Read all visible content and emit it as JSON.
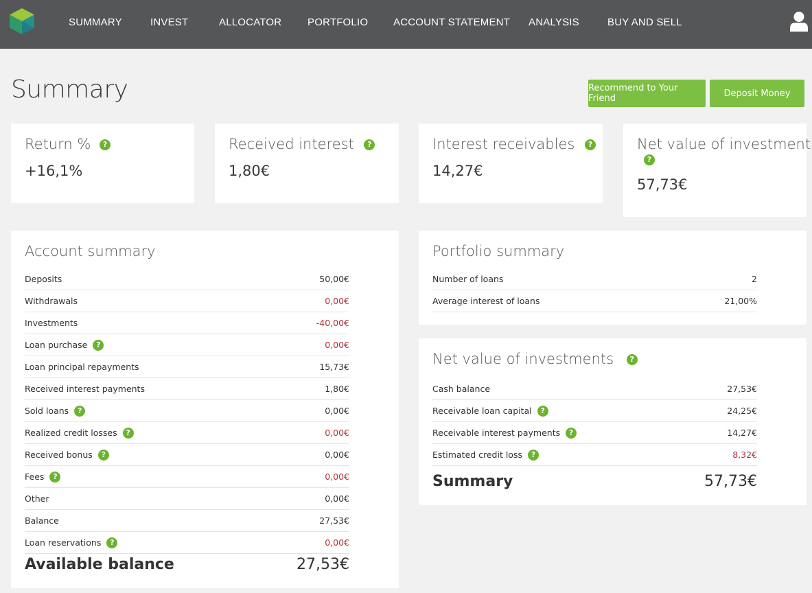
{
  "nav": {
    "items": [
      "SUMMARY",
      "INVEST",
      "ALLOCATOR",
      "PORTFOLIO",
      "ACCOUNT STATEMENT",
      "ANALYSIS",
      "BUY AND SELL"
    ]
  },
  "icons": {
    "logo": "hexagon-logo",
    "user": "user-icon",
    "help": "help-icon"
  },
  "colors": {
    "accent": "#7cbf42",
    "help": "#6ab42e",
    "negative": "#b0343a",
    "topbar": "#555657"
  },
  "page": {
    "title": "Summary"
  },
  "actions": {
    "recommend": "Recommend to Your Friend",
    "deposit": "Deposit Money"
  },
  "help_glyph": "?",
  "kpis": [
    {
      "label": "Return %",
      "value": "+16,1%"
    },
    {
      "label": "Received interest",
      "value": "1,80€"
    },
    {
      "label": "Interest receivables",
      "value": "14,27€"
    },
    {
      "label": "Net value of investments",
      "value": "57,73€"
    }
  ],
  "account_summary": {
    "title": "Account summary",
    "rows": [
      {
        "label": "Deposits",
        "value": "50,00€"
      },
      {
        "label": "Withdrawals",
        "value": "0,00€"
      },
      {
        "label": "Investments",
        "value": "-40,00€"
      },
      {
        "label": "Loan purchase",
        "value": "0,00€"
      },
      {
        "label": "Loan principal repayments",
        "value": "15,73€"
      },
      {
        "label": "Received interest payments",
        "value": "1,80€"
      },
      {
        "label": "Sold loans",
        "value": "0,00€"
      },
      {
        "label": "Realized credit losses",
        "value": "0,00€"
      },
      {
        "label": "Received bonus",
        "value": "0,00€"
      },
      {
        "label": "Fees",
        "value": "0,00€"
      },
      {
        "label": "Other",
        "value": "0,00€"
      },
      {
        "label": "Balance",
        "value": "27,53€"
      },
      {
        "label": "Loan reservations",
        "value": "0,00€"
      }
    ],
    "total_label": "Available balance",
    "total_value": "27,53€"
  },
  "portfolio_summary": {
    "title": "Portfolio summary",
    "rows": [
      {
        "label": "Number of loans",
        "value": "2"
      },
      {
        "label": "Average interest of loans",
        "value": "21,00%"
      }
    ]
  },
  "net_value": {
    "title": "Net value of investments",
    "rows": [
      {
        "label": "Cash balance",
        "value": "27,53€"
      },
      {
        "label": "Receivable loan capital",
        "value": "24,25€"
      },
      {
        "label": "Receivable interest payments",
        "value": "14,27€"
      },
      {
        "label": "Estimated credit loss",
        "value": "8,32€"
      }
    ],
    "total_label": "Summary",
    "total_value": "57,73€"
  }
}
